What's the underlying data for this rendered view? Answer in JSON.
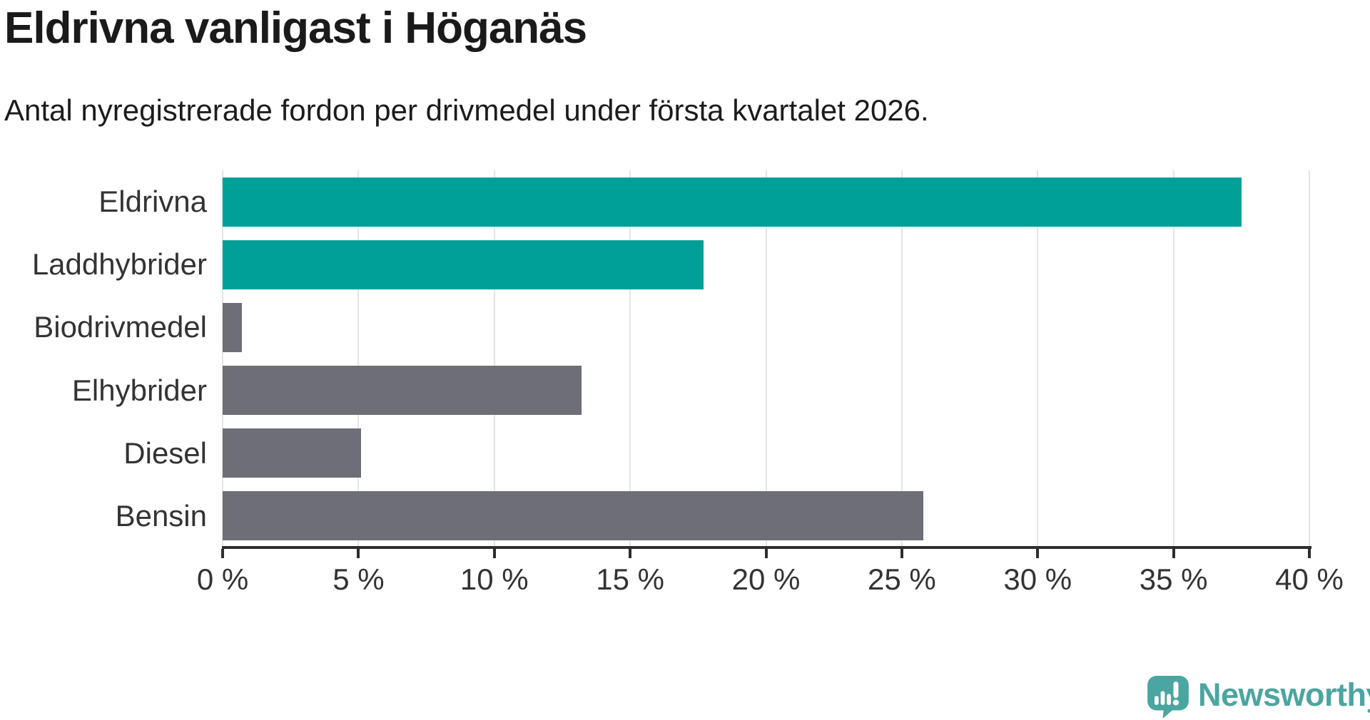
{
  "title": "Eldrivna vanligast i Höganäs",
  "subtitle": "Antal nyregistrerade fordon per drivmedel under första kvartalet 2026.",
  "chart_data": {
    "type": "bar",
    "orientation": "horizontal",
    "title": "Eldrivna vanligast i Höganäs",
    "subtitle": "Antal nyregistrerade fordon per drivmedel under första kvartalet 2026.",
    "categories": [
      "Eldrivna",
      "Laddhybrider",
      "Biodrivmedel",
      "Elhybrider",
      "Diesel",
      "Bensin"
    ],
    "values": [
      37.5,
      17.7,
      0.7,
      13.2,
      5.1,
      25.8
    ],
    "unit": "%",
    "bar_colors": [
      "#00a099",
      "#00a099",
      "#6d6e76",
      "#6d6e76",
      "#6d6e76",
      "#6d6e76"
    ],
    "xlim": [
      0,
      40
    ],
    "x_ticks": [
      0,
      5,
      10,
      15,
      20,
      25,
      30,
      35,
      40
    ],
    "x_tick_labels": [
      "0 %",
      "5 %",
      "10 %",
      "15 %",
      "20 %",
      "25 %",
      "30 %",
      "35 %",
      "40 %"
    ],
    "xlabel": "",
    "ylabel": "",
    "grid": "vertical",
    "legend": "none"
  },
  "colors": {
    "highlight": "#00a099",
    "neutral": "#6d6e76",
    "axis": "#2e2e2e",
    "gridline": "#e4e4e4",
    "title_text": "#1a1a1a",
    "label_text": "#333333",
    "logo_teal": "#4ba5a0"
  },
  "branding": {
    "logo_text": "Newsworthy"
  }
}
